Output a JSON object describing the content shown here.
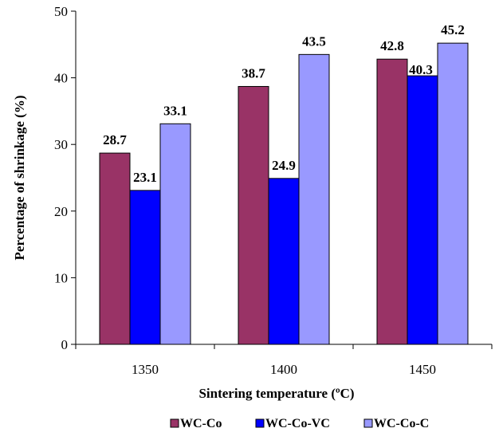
{
  "chart_data": {
    "type": "bar",
    "categories": [
      "1350",
      "1400",
      "1450"
    ],
    "series": [
      {
        "name": "WC-Co",
        "values": [
          28.7,
          38.7,
          42.8
        ],
        "labels": [
          "28.7",
          "38.7",
          "42.8"
        ],
        "color": "#993366"
      },
      {
        "name": "WC-Co-VC",
        "values": [
          23.1,
          24.9,
          40.3
        ],
        "labels": [
          "23.1",
          "24.9",
          "40.3"
        ],
        "color": "#0000FF"
      },
      {
        "name": "WC-Co-C",
        "values": [
          33.1,
          43.5,
          45.2
        ],
        "labels": [
          "33.1",
          "43.5",
          "45.2"
        ],
        "color": "#9999FF"
      }
    ],
    "xlabel": "Sintering temperature (ºC)",
    "ylabel": "Percentage of shrinkage (%)",
    "ylim": [
      0,
      50
    ],
    "yticks": [
      "0",
      "10",
      "20",
      "30",
      "40",
      "50"
    ],
    "grid": false,
    "legend_position": "bottom"
  }
}
